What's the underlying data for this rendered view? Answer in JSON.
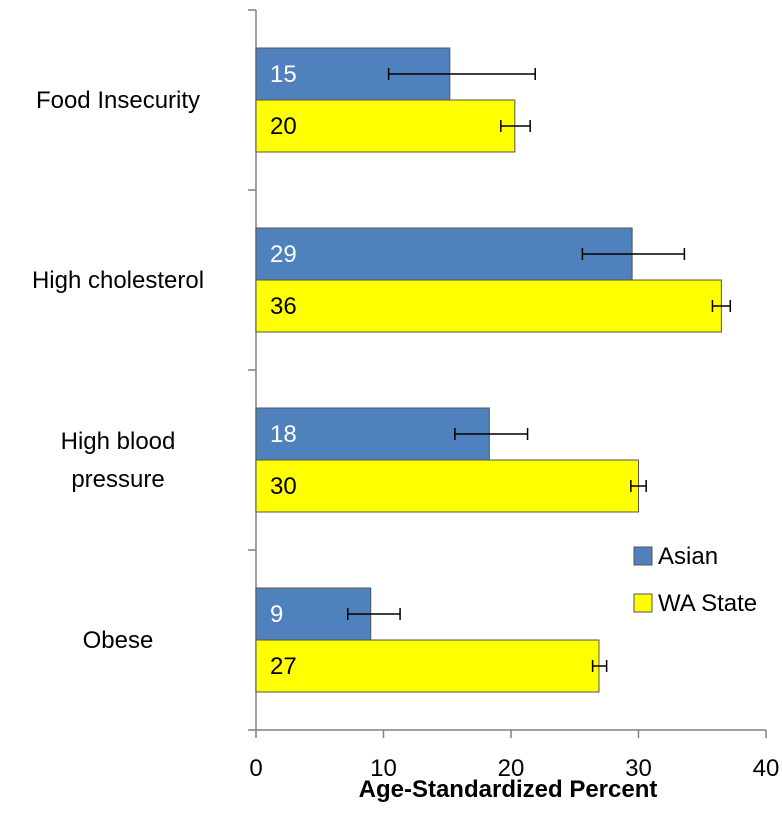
{
  "chart_data": {
    "type": "bar",
    "orientation": "horizontal",
    "categories": [
      "Food Insecurity",
      "High cholesterol",
      "High blood pressure",
      "Obese"
    ],
    "category_lines": [
      [
        "Food Insecurity"
      ],
      [
        "High cholesterol"
      ],
      [
        "High blood",
        "pressure"
      ],
      [
        "Obese"
      ]
    ],
    "series": [
      {
        "name": "Asian",
        "color": "#4f81bd",
        "label_color": "#ffffff",
        "values": [
          15.2,
          29.5,
          18.3,
          9.0
        ],
        "labels": [
          "15",
          "29",
          "18",
          "9"
        ],
        "ci_low": [
          10.4,
          25.6,
          15.6,
          7.2
        ],
        "ci_high": [
          21.9,
          33.6,
          21.3,
          11.3
        ]
      },
      {
        "name": "WA State",
        "color": "#ffff00",
        "label_color": "#000000",
        "values": [
          20.3,
          36.5,
          30.0,
          26.9
        ],
        "labels": [
          "20",
          "36",
          "30",
          "27"
        ],
        "ci_low": [
          19.2,
          35.8,
          29.4,
          26.4
        ],
        "ci_high": [
          21.5,
          37.2,
          30.6,
          27.5
        ]
      }
    ],
    "xlabel": "Age-Standardized Percent",
    "xlim": [
      0,
      40
    ],
    "xticks": [
      0,
      10,
      20,
      30,
      40
    ],
    "legend_position": "bottom-right",
    "grid": false
  }
}
